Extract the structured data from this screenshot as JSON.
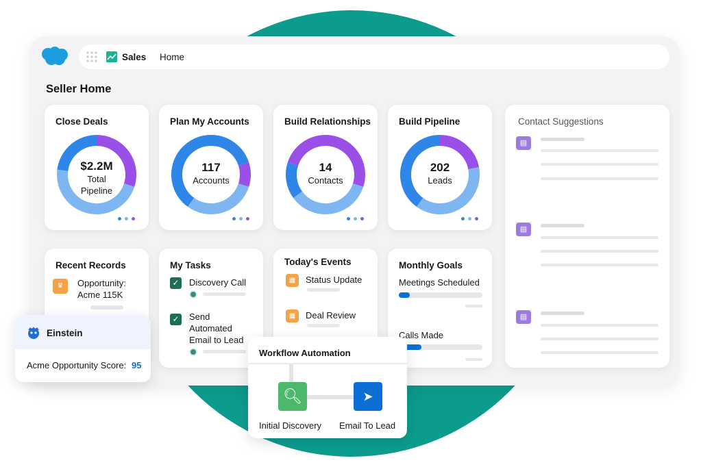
{
  "header": {
    "app_name": "Sales",
    "nav_item": "Home"
  },
  "page_title": "Seller Home",
  "colors": {
    "dark_blue": "#2e87e8",
    "light_blue": "#7db6f0",
    "purple": "#9a4fe8",
    "teal": "#0c9c8e"
  },
  "kpis": [
    {
      "title": "Close Deals",
      "value": "$2.2M",
      "label_line1": "Total",
      "label_line2": "Pipeline",
      "segments": [
        {
          "color": "purple",
          "from": 0,
          "to": 0.3
        },
        {
          "color": "light_blue",
          "from": 0.3,
          "to": 0.77
        },
        {
          "color": "dark_blue",
          "from": 0.77,
          "to": 1
        }
      ]
    },
    {
      "title": "Plan My Accounts",
      "value": "117",
      "label_line1": "Accounts",
      "label_line2": "",
      "segments": [
        {
          "color": "dark_blue",
          "from": 0,
          "to": 0.2
        },
        {
          "color": "purple",
          "from": 0.2,
          "to": 0.3
        },
        {
          "color": "light_blue",
          "from": 0.3,
          "to": 0.6
        },
        {
          "color": "dark_blue",
          "from": 0.6,
          "to": 1
        }
      ]
    },
    {
      "title": "Build Relationships",
      "value": "14",
      "label_line1": "Contacts",
      "label_line2": "",
      "segments": [
        {
          "color": "purple",
          "from": -0.2,
          "to": 0.3
        },
        {
          "color": "light_blue",
          "from": 0.3,
          "to": 0.65
        },
        {
          "color": "dark_blue",
          "from": 0.65,
          "to": 0.8
        }
      ]
    },
    {
      "title": "Build Pipeline",
      "value": "202",
      "label_line1": "Leads",
      "label_line2": "",
      "segments": [
        {
          "color": "purple",
          "from": 0,
          "to": 0.22
        },
        {
          "color": "light_blue",
          "from": 0.22,
          "to": 0.6
        },
        {
          "color": "dark_blue",
          "from": 0.6,
          "to": 1
        }
      ]
    }
  ],
  "contact_suggestions": {
    "title": "Contact Suggestions"
  },
  "recent_records": {
    "title": "Recent Records",
    "item_line1": "Opportunity:",
    "item_line2": "Acme 115K"
  },
  "my_tasks": {
    "title": "My Tasks",
    "task1": "Discovery Call",
    "task2_line1": "Send",
    "task2_line2": "Automated",
    "task2_line3": "Email to Lead"
  },
  "todays_events": {
    "title": "Today's Events",
    "event1": "Status Update",
    "event2": "Deal Review"
  },
  "monthly_goals": {
    "title": "Monthly Goals",
    "goal1": "Meetings Scheduled",
    "goal1_progress": 0.13,
    "goal2": "Calls Made",
    "goal2_progress": 0.27
  },
  "einstein": {
    "title": "Einstein",
    "score_label": "Acme Opportunity Score:",
    "score_value": "95"
  },
  "workflow": {
    "title": "Workflow Automation",
    "step1": "Initial Discovery",
    "step2": "Email To Lead"
  }
}
